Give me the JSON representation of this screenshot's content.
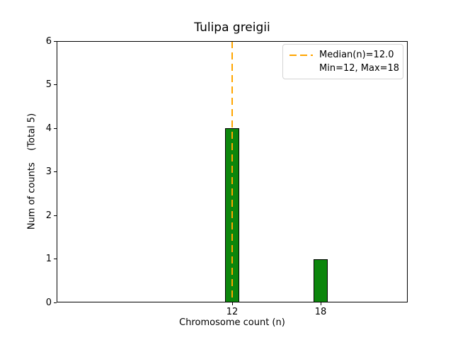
{
  "chart_data": {
    "type": "bar",
    "title": "Tulipa greigii",
    "xlabel": "Chromosome count (n)",
    "ylabel": "Num of counts    (Total 5)",
    "x": [
      12,
      18
    ],
    "values": [
      4,
      1
    ],
    "bar_width": 1,
    "xlim": [
      0.1,
      23.9
    ],
    "ylim": [
      0,
      6
    ],
    "xticks": [
      12,
      18
    ],
    "yticks": [
      0,
      1,
      2,
      3,
      4,
      5,
      6
    ],
    "median": 12.0,
    "min": 12,
    "max": 18,
    "total_counts": 5,
    "grid": false,
    "legend_position": "upper right",
    "legend_entries": [
      "Median(n)=12.0",
      "Min=12, Max=18"
    ],
    "colors": {
      "bar": "#0c860c",
      "bar_edge": "#000000",
      "median_line": "#ffa500",
      "axis": "#000000",
      "background": "#ffffff"
    }
  }
}
